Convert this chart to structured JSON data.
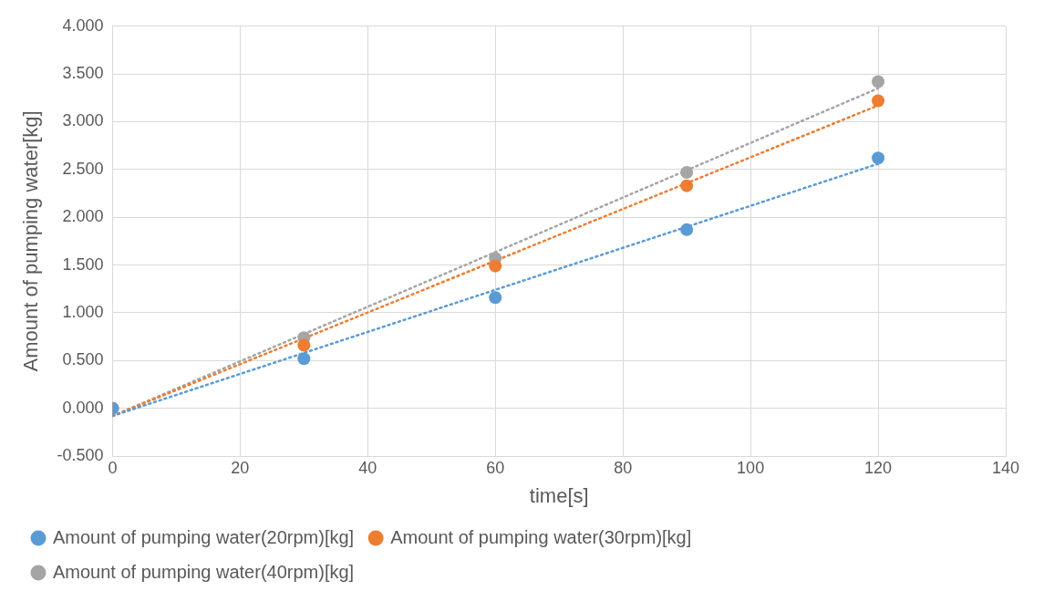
{
  "chart_data": {
    "type": "scatter",
    "xlabel": "time[s]",
    "ylabel": "Amount of pumping water[kg]",
    "xlim": [
      0,
      140
    ],
    "xticks": [
      0,
      20,
      40,
      60,
      80,
      100,
      120,
      140
    ],
    "ylim": [
      -0.5,
      4
    ],
    "yticks": [
      {
        "value": -0.5,
        "label": "-0.500"
      },
      {
        "value": 0,
        "label": "0.000"
      },
      {
        "value": 0.5,
        "label": "0.500"
      },
      {
        "value": 1,
        "label": "1.000"
      },
      {
        "value": 1.5,
        "label": "1.500"
      },
      {
        "value": 2,
        "label": "2.000"
      },
      {
        "value": 2.5,
        "label": "2.500"
      },
      {
        "value": 3,
        "label": "3.000"
      },
      {
        "value": 3.5,
        "label": "3.500"
      },
      {
        "value": 4,
        "label": "4.000"
      }
    ],
    "grid": true,
    "legend": "bottom",
    "marker": "circle",
    "series": [
      {
        "name": "Amount of pumping water(20rpm)[kg]",
        "color": "#5b9bd5",
        "x": [
          0,
          30,
          60,
          90,
          120
        ],
        "values": [
          0,
          0.52,
          1.16,
          1.87,
          2.62
        ]
      },
      {
        "name": "Amount of pumping water(30rpm)[kg]",
        "color": "#ed7d31",
        "x": [
          0,
          30,
          60,
          90,
          120
        ],
        "values": [
          0,
          0.66,
          1.49,
          2.33,
          3.22
        ]
      },
      {
        "name": "Amount of pumping water(40rpm)[kg]",
        "color": "#a5a5a5",
        "x": [
          0,
          30,
          60,
          90,
          120
        ],
        "values": [
          0,
          0.74,
          1.57,
          2.47,
          3.42
        ]
      },
      {
        "type": "line",
        "line_style": "dotted",
        "marker": "none",
        "color": "#5b9bd5",
        "x": [
          0,
          120
        ],
        "values": [
          -0.08,
          2.56
        ]
      },
      {
        "type": "line",
        "line_style": "dotted",
        "marker": "none",
        "color": "#ed7d31",
        "x": [
          0,
          120
        ],
        "values": [
          -0.08,
          3.17
        ]
      },
      {
        "type": "line",
        "line_style": "dotted",
        "marker": "none",
        "color": "#a5a5a5",
        "x": [
          0,
          120
        ],
        "values": [
          -0.08,
          3.35
        ]
      }
    ]
  }
}
